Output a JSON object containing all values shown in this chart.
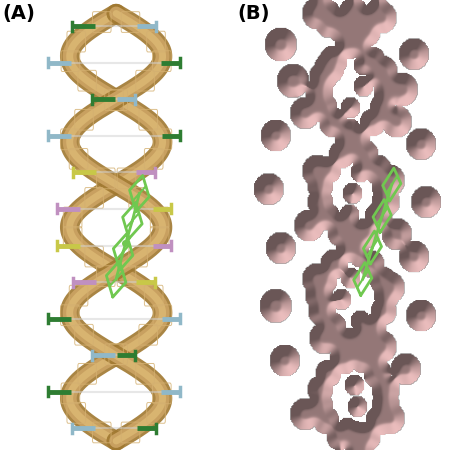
{
  "figsize": [
    4.74,
    4.5
  ],
  "dpi": 100,
  "bg_color": "#ffffff",
  "label_A": "(A)",
  "label_B": "(B)",
  "label_fontsize": 14,
  "label_fontweight": "bold",
  "dna_backbone_color": "#c8a060",
  "dna_backbone_dark": "#a07830",
  "dna_backbone_light": "#e8c880",
  "dna_base_green": "#2e7d32",
  "dna_base_blue": "#90b8c8",
  "dna_base_yellow": "#c8c848",
  "dna_base_purple": "#c090c0",
  "ligand_green": "#70c850",
  "surface_color": "#c8a0a0",
  "surface_light": "#e8c8c8",
  "surface_dark": "#a07878"
}
